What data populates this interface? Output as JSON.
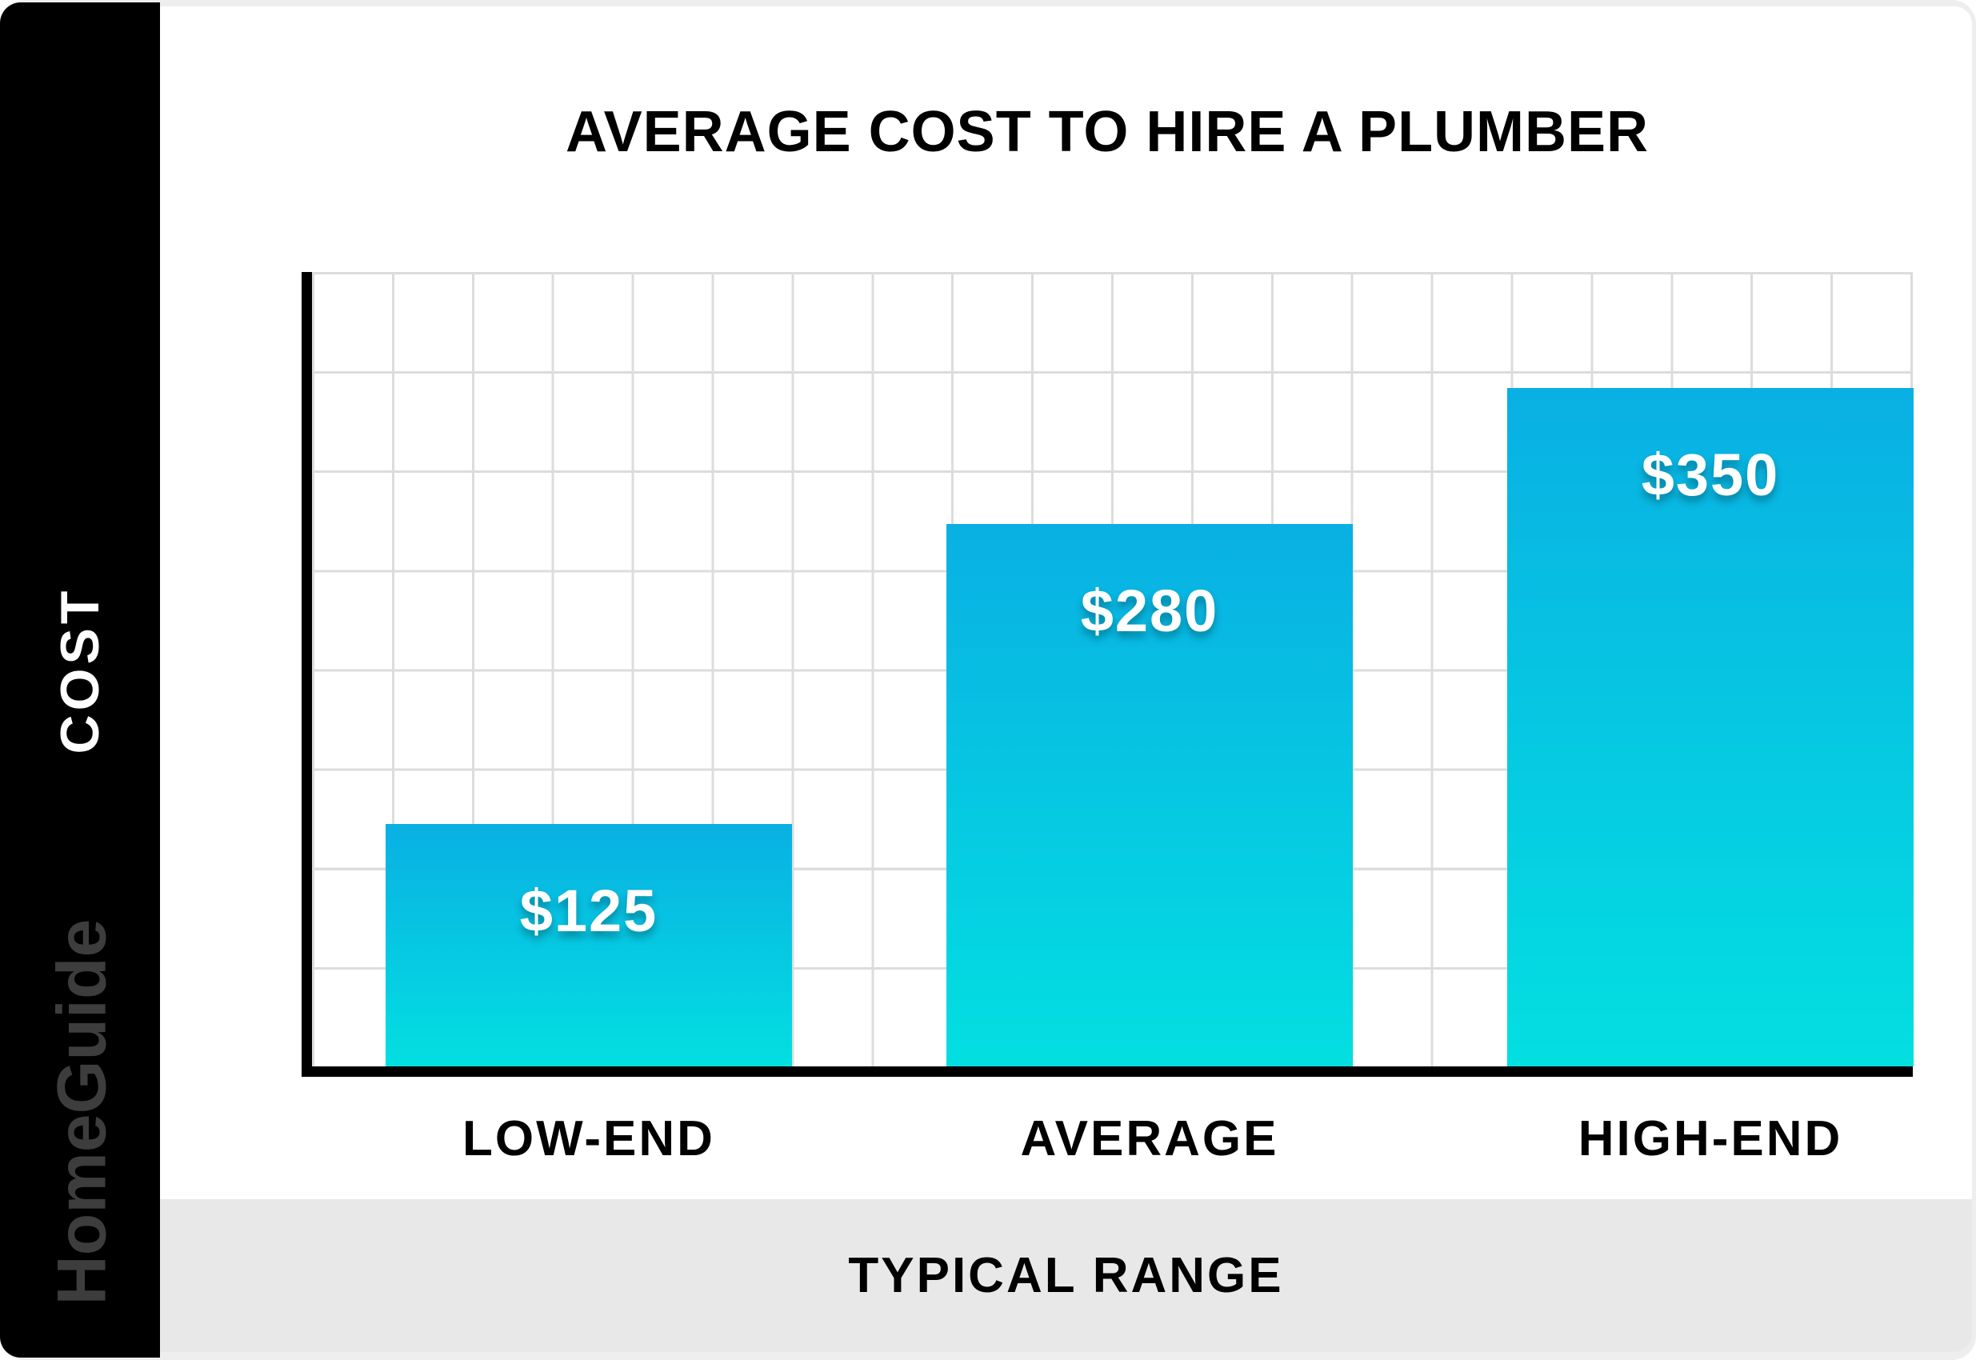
{
  "page": {
    "brand": "HomeGuide",
    "colors": {
      "sidebar": "#000000",
      "brand_text": "#3d3d3d",
      "card": "#ffffff",
      "page_background": "#eeeeee",
      "bottom_band": "#e8e8e8",
      "grid": "#dcdcdc",
      "bar_gradient_top": "#09b0e3",
      "bar_gradient_bottom": "#03dfe1",
      "value_label_text": "#ffffff"
    }
  },
  "chart_data": {
    "type": "bar",
    "title": "AVERAGE COST TO HIRE A PLUMBER",
    "categories": [
      "LOW-END",
      "AVERAGE",
      "HIGH-END"
    ],
    "values": [
      125,
      280,
      350
    ],
    "value_labels": [
      "$125",
      "$280",
      "$350"
    ],
    "xlabel": "TYPICAL RANGE",
    "ylabel": "COST",
    "ylim": [
      0,
      410
    ],
    "grid": true,
    "legend": "none",
    "bar_gradient": [
      "#09b0e3",
      "#03dfe1"
    ]
  }
}
